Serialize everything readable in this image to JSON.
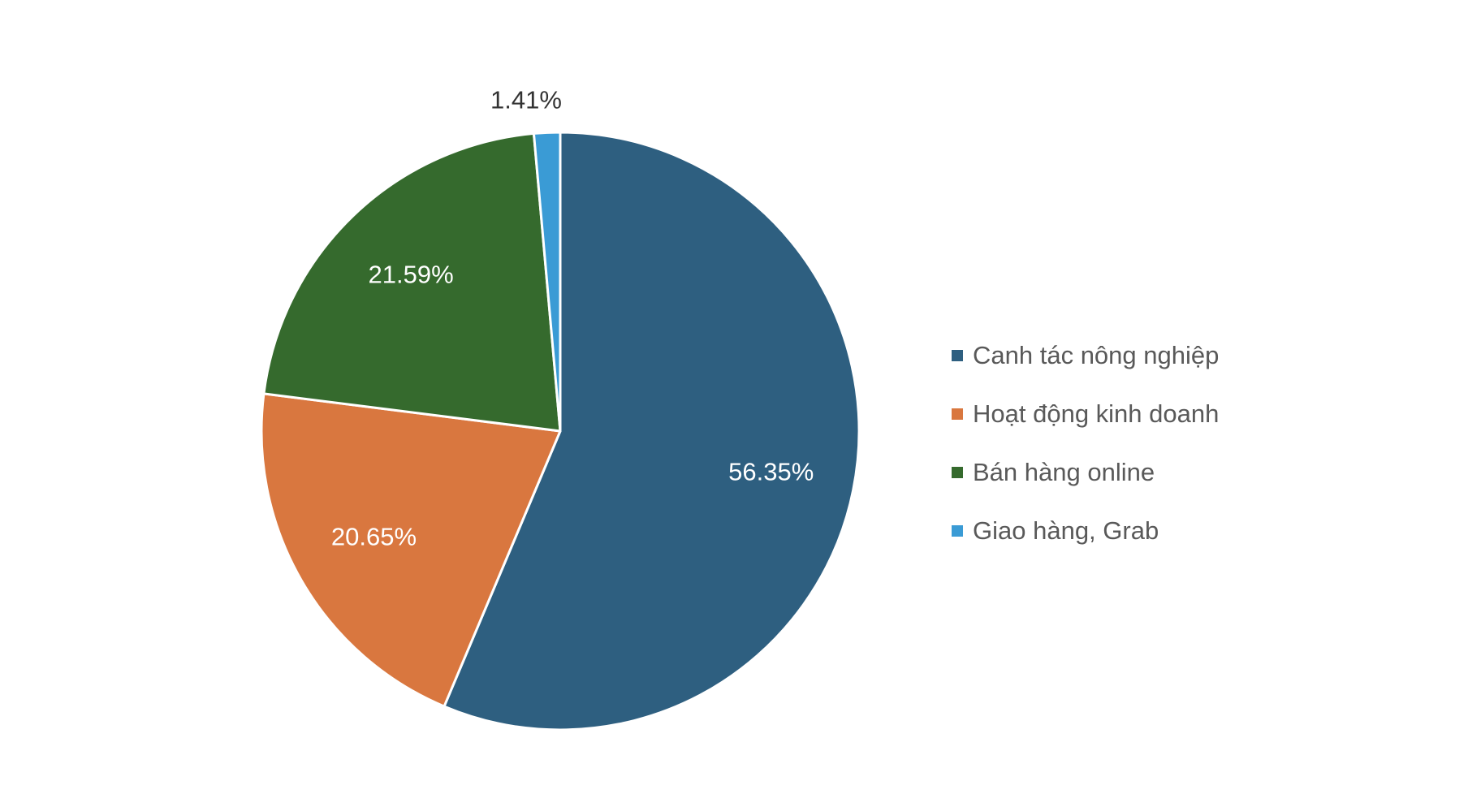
{
  "chart_data": {
    "type": "pie",
    "title": "",
    "categories": [
      "Canh tác nông nghiệp",
      "Hoạt động kinh doanh",
      "Bán hàng online",
      "Giao hàng, Grab"
    ],
    "values": [
      56.35,
      20.65,
      21.59,
      1.41
    ],
    "value_labels": [
      "56.35%",
      "20.65%",
      "21.59%",
      "1.41%"
    ],
    "colors": [
      "#2e5f80",
      "#d9773f",
      "#356a2d",
      "#3a9bd5"
    ],
    "label_colors": [
      "#ffffff",
      "#ffffff",
      "#ffffff",
      "#333333"
    ],
    "start_angle_deg": 0,
    "direction": "clockwise",
    "legend_position": "right"
  }
}
